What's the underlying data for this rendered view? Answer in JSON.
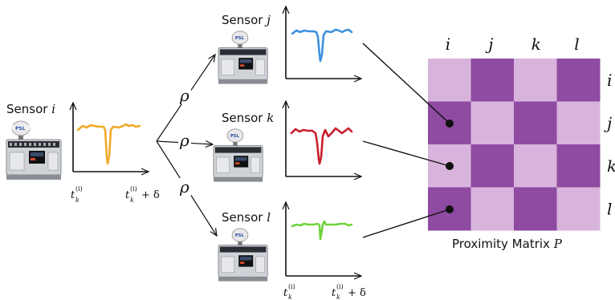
{
  "sensor_prefix": "Sensor",
  "sensors": [
    {
      "id": "i",
      "color": "#f0a92a"
    },
    {
      "id": "j",
      "color": "#3d8fde"
    },
    {
      "id": "k",
      "color": "#c81e2d"
    },
    {
      "id": "l",
      "color": "#6fd33a"
    }
  ],
  "device_label": "PSL",
  "rho": "ρ",
  "time_labels": {
    "start_base": "t",
    "start_sub": "k",
    "start_sup": "(i)",
    "end_suffix": "+ δ"
  },
  "matrix": {
    "title": "Proximity Matrix",
    "symbol": "P",
    "col_labels": [
      "i",
      "j",
      "k",
      "l"
    ],
    "row_labels": [
      "i",
      "j",
      "k",
      "l"
    ],
    "light_color": "#d8b4dc",
    "dark_color": "#8f4aa2",
    "pattern": [
      [
        "light",
        "dark",
        "light",
        "dark"
      ],
      [
        "dark",
        "light",
        "dark",
        "light"
      ],
      [
        "light",
        "dark",
        "light",
        "dark"
      ],
      [
        "dark",
        "light",
        "dark",
        "light"
      ]
    ]
  }
}
